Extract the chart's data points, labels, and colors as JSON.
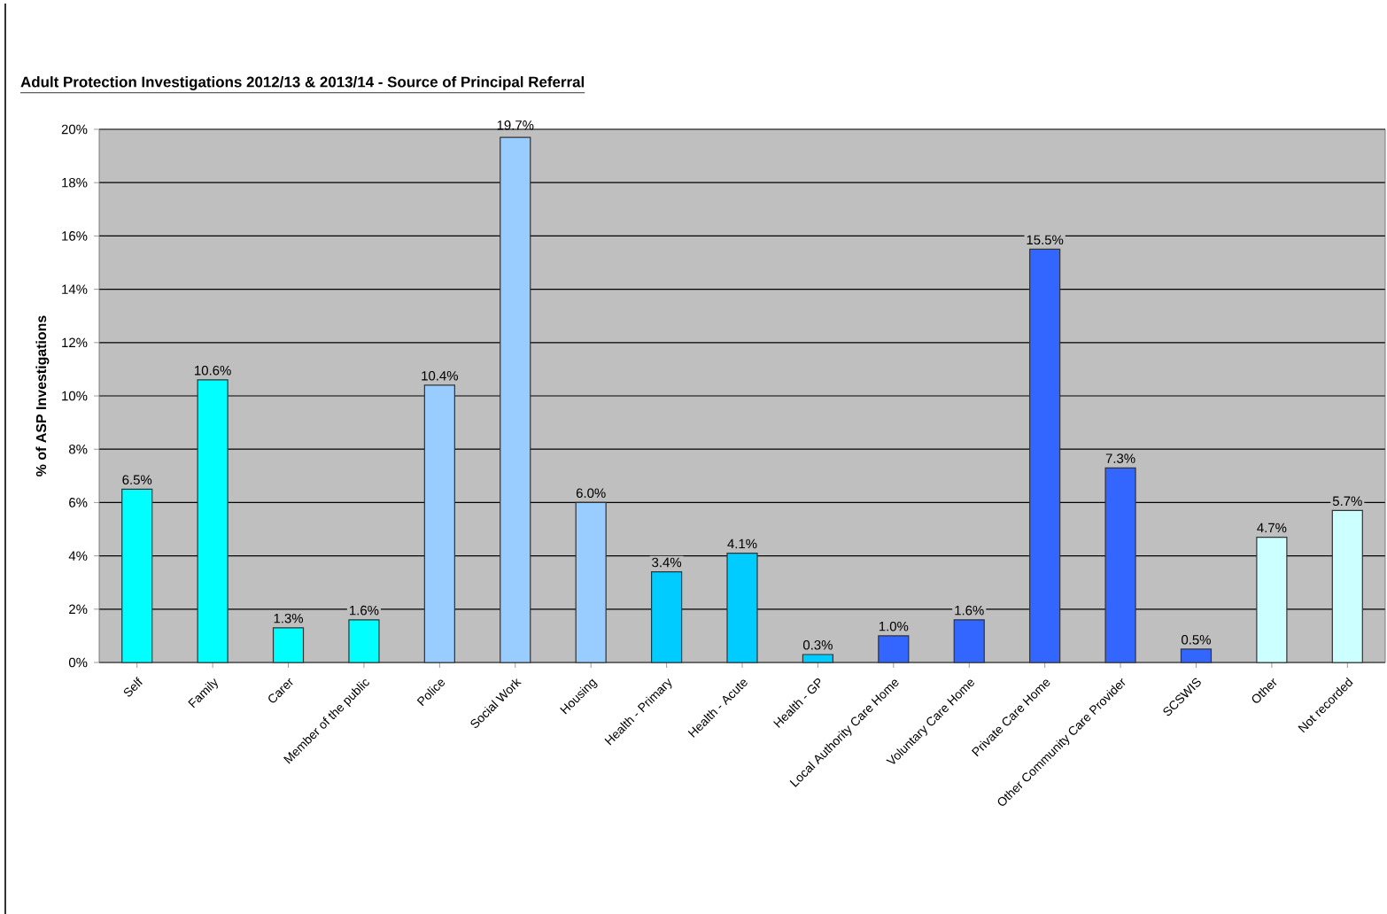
{
  "chart_data": {
    "type": "bar",
    "title": "Adult Protection Investigations 2012/13 & 2013/14 - Source of Principal Referral",
    "ylabel": "% of ASP Investigations",
    "categories": [
      "Self",
      "Family",
      "Carer",
      "Member of the public",
      "Police",
      "Social Work",
      "Housing",
      "Health - Primary",
      "Health - Acute",
      "Health - GP",
      "Local Authority Care Home",
      "Voluntary Care Home",
      "Private Care Home",
      "Other Community Care Provider",
      "SCSWIS",
      "Other",
      "Not recorded"
    ],
    "values": [
      6.5,
      10.6,
      1.3,
      1.6,
      10.4,
      19.7,
      6.0,
      3.4,
      4.1,
      0.3,
      1.0,
      1.6,
      15.5,
      7.3,
      0.5,
      4.7,
      5.7
    ],
    "value_labels": [
      "6.5%",
      "10.6%",
      "1.3%",
      "1.6%",
      "10.4%",
      "19.7%",
      "6.0%",
      "3.4%",
      "4.1%",
      "0.3%",
      "1.0%",
      "1.6%",
      "15.5%",
      "7.3%",
      "0.5%",
      "4.7%",
      "5.7%"
    ],
    "colors": [
      "#00ffff",
      "#00ffff",
      "#00ffff",
      "#00ffff",
      "#99ccff",
      "#99ccff",
      "#99ccff",
      "#00ccff",
      "#00ccff",
      "#00ccff",
      "#3366ff",
      "#3366ff",
      "#3366ff",
      "#3366ff",
      "#3366ff",
      "#ccffff",
      "#ccffff"
    ],
    "ylim": [
      0,
      20
    ],
    "yticks": [
      {
        "value": 0,
        "label": "0%"
      },
      {
        "value": 2,
        "label": "2%"
      },
      {
        "value": 4,
        "label": "4%"
      },
      {
        "value": 6,
        "label": "6%"
      },
      {
        "value": 8,
        "label": "8%"
      },
      {
        "value": 10,
        "label": "10%"
      },
      {
        "value": 12,
        "label": "12%"
      },
      {
        "value": 14,
        "label": "14%"
      },
      {
        "value": 16,
        "label": "16%"
      },
      {
        "value": 18,
        "label": "18%"
      },
      {
        "value": 20,
        "label": "20%"
      }
    ],
    "grid": "y"
  }
}
